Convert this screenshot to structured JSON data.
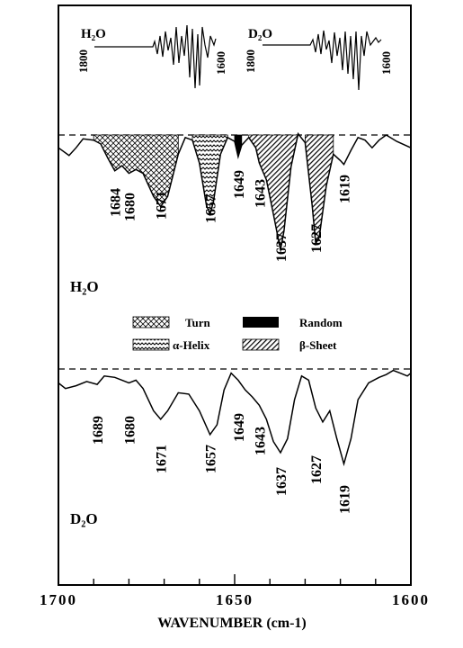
{
  "chart_data": {
    "type": "line",
    "xlabel": "WAVENUMBER (cm-1)",
    "x_ticks": [
      1700,
      1650,
      1600
    ],
    "xlim": [
      1700,
      1600
    ],
    "inset_spectra": [
      {
        "name": "H2O",
        "display": "H₂O",
        "x_start_label": "1800",
        "x_end_label": "1600"
      },
      {
        "name": "D2O",
        "display": "D₂O",
        "x_start_label": "1800",
        "x_end_label": "1600"
      }
    ],
    "panels": [
      {
        "name": "H2O",
        "display": "H₂O",
        "peaks": [
          {
            "x": 1684,
            "label": "1684",
            "component": "Turn"
          },
          {
            "x": 1680,
            "label": "1680",
            "component": "Turn"
          },
          {
            "x": 1671,
            "label": "1671",
            "component": "Turn"
          },
          {
            "x": 1657,
            "label": "1657",
            "component": "α-Helix"
          },
          {
            "x": 1649,
            "label": "1649",
            "component": "Random"
          },
          {
            "x": 1643,
            "label": "1643",
            "component": "β-Sheet"
          },
          {
            "x": 1637,
            "label": "1637",
            "component": "β-Sheet"
          },
          {
            "x": 1627,
            "label": "1627",
            "component": "β-Sheet"
          },
          {
            "x": 1619,
            "label": "1619"
          }
        ],
        "curve": [
          [
            1700,
            0.1
          ],
          [
            1697,
            0.16
          ],
          [
            1695,
            0.1
          ],
          [
            1693,
            0.03
          ],
          [
            1690,
            0.04
          ],
          [
            1688,
            0.07
          ],
          [
            1686,
            0.18
          ],
          [
            1684,
            0.28
          ],
          [
            1682,
            0.24
          ],
          [
            1680,
            0.3
          ],
          [
            1678,
            0.27
          ],
          [
            1676,
            0.3
          ],
          [
            1673,
            0.48
          ],
          [
            1671,
            0.56
          ],
          [
            1669,
            0.48
          ],
          [
            1666,
            0.15
          ],
          [
            1664,
            0.02
          ],
          [
            1662,
            0.04
          ],
          [
            1660,
            0.22
          ],
          [
            1658,
            0.55
          ],
          [
            1657,
            0.62
          ],
          [
            1656,
            0.52
          ],
          [
            1654,
            0.15
          ],
          [
            1652,
            0.02
          ],
          [
            1650,
            0.05
          ],
          [
            1649,
            0.17
          ],
          [
            1648,
            0.08
          ],
          [
            1646,
            0.02
          ],
          [
            1644,
            0.1
          ],
          [
            1643,
            0.22
          ],
          [
            1641,
            0.35
          ],
          [
            1639,
            0.62
          ],
          [
            1637,
            0.9
          ],
          [
            1636,
            0.75
          ],
          [
            1634,
            0.25
          ],
          [
            1632,
            -0.01
          ],
          [
            1630,
            0.06
          ],
          [
            1628,
            0.55
          ],
          [
            1627,
            0.85
          ],
          [
            1626,
            0.8
          ],
          [
            1624,
            0.4
          ],
          [
            1622,
            0.15
          ],
          [
            1620,
            0.2
          ],
          [
            1619,
            0.23
          ],
          [
            1617,
            0.12
          ],
          [
            1615,
            0.02
          ],
          [
            1613,
            0.04
          ],
          [
            1611,
            0.1
          ],
          [
            1609,
            0.04
          ],
          [
            1607,
            0.0
          ],
          [
            1604,
            0.05
          ],
          [
            1600,
            0.1
          ]
        ],
        "components": [
          {
            "name": "Turn",
            "range": [
              1690.5,
              1665
            ]
          },
          {
            "name": "α-Helix",
            "range": [
              1663,
              1652
            ]
          },
          {
            "name": "Random",
            "range": [
              1651,
              1646.5
            ]
          },
          {
            "name": "β-Sheet",
            "range": [
              1646,
              1631
            ]
          },
          {
            "name": "β-Sheet",
            "range": [
              1631,
              1622
            ]
          }
        ]
      },
      {
        "name": "D2O",
        "display": "D₂O",
        "peaks": [
          {
            "x": 1689,
            "label": "1689"
          },
          {
            "x": 1680,
            "label": "1680"
          },
          {
            "x": 1671,
            "label": "1671"
          },
          {
            "x": 1657,
            "label": "1657"
          },
          {
            "x": 1649,
            "label": "1649"
          },
          {
            "x": 1643,
            "label": "1643"
          },
          {
            "x": 1637,
            "label": "1637"
          },
          {
            "x": 1627,
            "label": "1627"
          },
          {
            "x": 1619,
            "label": "1619"
          }
        ],
        "curve": [
          [
            1700,
            0.1
          ],
          [
            1698,
            0.14
          ],
          [
            1695,
            0.12
          ],
          [
            1692,
            0.09
          ],
          [
            1689,
            0.11
          ],
          [
            1687,
            0.05
          ],
          [
            1684,
            0.06
          ],
          [
            1680,
            0.1
          ],
          [
            1678,
            0.08
          ],
          [
            1676,
            0.14
          ],
          [
            1673,
            0.3
          ],
          [
            1671,
            0.36
          ],
          [
            1669,
            0.3
          ],
          [
            1666,
            0.17
          ],
          [
            1663,
            0.18
          ],
          [
            1660,
            0.3
          ],
          [
            1657,
            0.47
          ],
          [
            1655,
            0.4
          ],
          [
            1653,
            0.15
          ],
          [
            1651,
            0.03
          ],
          [
            1649,
            0.08
          ],
          [
            1647,
            0.15
          ],
          [
            1645,
            0.2
          ],
          [
            1643,
            0.26
          ],
          [
            1641,
            0.36
          ],
          [
            1639,
            0.52
          ],
          [
            1637,
            0.6
          ],
          [
            1635,
            0.5
          ],
          [
            1633,
            0.22
          ],
          [
            1631,
            0.05
          ],
          [
            1629,
            0.08
          ],
          [
            1627,
            0.28
          ],
          [
            1625,
            0.38
          ],
          [
            1623,
            0.3
          ],
          [
            1621,
            0.5
          ],
          [
            1619,
            0.68
          ],
          [
            1617,
            0.5
          ],
          [
            1615,
            0.22
          ],
          [
            1612,
            0.1
          ],
          [
            1609,
            0.06
          ],
          [
            1607,
            0.04
          ],
          [
            1605,
            0.01
          ],
          [
            1603,
            0.03
          ],
          [
            1601,
            0.05
          ],
          [
            1600,
            0.03
          ]
        ]
      }
    ],
    "legend": [
      {
        "name": "Turn",
        "pattern": "dots"
      },
      {
        "name": "Random",
        "pattern": "solid"
      },
      {
        "name": "α-Helix",
        "pattern": "waves"
      },
      {
        "name": "β-Sheet",
        "pattern": "diagonal"
      }
    ]
  }
}
